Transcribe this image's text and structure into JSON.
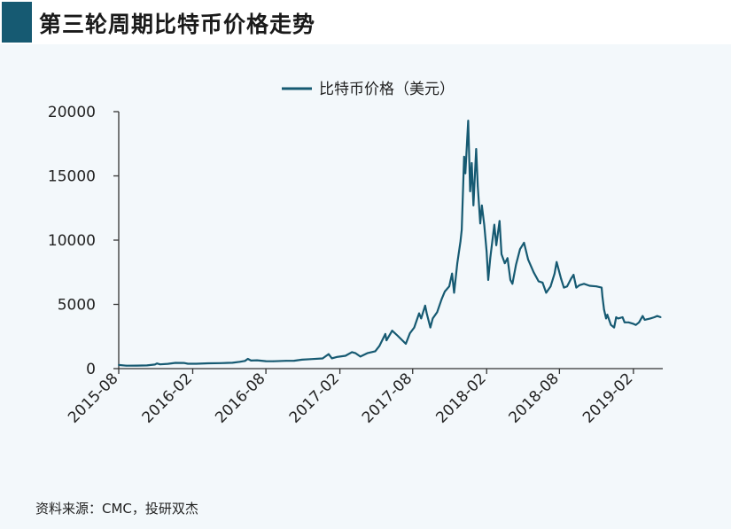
{
  "header": {
    "title": "第三轮周期比特币价格走势"
  },
  "source": "资料来源：CMC，投研双杰",
  "colors": {
    "line": "#165a72",
    "accent": "#165a72",
    "background": "#f3f8fb"
  },
  "chart_data": {
    "type": "line",
    "title": "",
    "xlabel": "",
    "ylabel": "",
    "ylim": [
      0,
      20000
    ],
    "yticks": [
      0,
      5000,
      10000,
      15000,
      20000
    ],
    "xticks": [
      "2015-08",
      "2016-02",
      "2016-08",
      "2017-02",
      "2017-08",
      "2018-02",
      "2018-08",
      "2019-02"
    ],
    "xrange": [
      "2015-08-01",
      "2019-04-15"
    ],
    "legend": {
      "position": "top-center"
    },
    "grid": false,
    "series": [
      {
        "name": "比特币价格（美元）",
        "points": [
          [
            "2015-08-01",
            280
          ],
          [
            "2015-08-20",
            230
          ],
          [
            "2015-09-15",
            235
          ],
          [
            "2015-10-10",
            245
          ],
          [
            "2015-10-30",
            320
          ],
          [
            "2015-11-04",
            400
          ],
          [
            "2015-11-12",
            330
          ],
          [
            "2015-12-01",
            370
          ],
          [
            "2015-12-20",
            450
          ],
          [
            "2016-01-10",
            440
          ],
          [
            "2016-01-20",
            380
          ],
          [
            "2016-02-10",
            380
          ],
          [
            "2016-03-10",
            415
          ],
          [
            "2016-04-10",
            425
          ],
          [
            "2016-05-10",
            455
          ],
          [
            "2016-05-28",
            530
          ],
          [
            "2016-06-10",
            600
          ],
          [
            "2016-06-17",
            760
          ],
          [
            "2016-06-25",
            630
          ],
          [
            "2016-07-10",
            650
          ],
          [
            "2016-08-01",
            580
          ],
          [
            "2016-08-20",
            575
          ],
          [
            "2016-09-20",
            605
          ],
          [
            "2016-10-10",
            615
          ],
          [
            "2016-10-30",
            700
          ],
          [
            "2016-11-20",
            740
          ],
          [
            "2016-12-20",
            790
          ],
          [
            "2017-01-04",
            1130
          ],
          [
            "2017-01-12",
            800
          ],
          [
            "2017-01-25",
            910
          ],
          [
            "2017-02-15",
            1000
          ],
          [
            "2017-03-03",
            1280
          ],
          [
            "2017-03-12",
            1200
          ],
          [
            "2017-03-24",
            940
          ],
          [
            "2017-04-10",
            1200
          ],
          [
            "2017-04-30",
            1350
          ],
          [
            "2017-05-10",
            1750
          ],
          [
            "2017-05-25",
            2700
          ],
          [
            "2017-05-28",
            2200
          ],
          [
            "2017-06-11",
            2950
          ],
          [
            "2017-06-25",
            2550
          ],
          [
            "2017-07-15",
            1930
          ],
          [
            "2017-07-25",
            2750
          ],
          [
            "2017-08-05",
            3200
          ],
          [
            "2017-08-17",
            4300
          ],
          [
            "2017-08-22",
            3900
          ],
          [
            "2017-09-01",
            4900
          ],
          [
            "2017-09-05",
            4300
          ],
          [
            "2017-09-14",
            3200
          ],
          [
            "2017-09-20",
            3900
          ],
          [
            "2017-10-01",
            4400
          ],
          [
            "2017-10-12",
            5400
          ],
          [
            "2017-10-20",
            6000
          ],
          [
            "2017-10-31",
            6400
          ],
          [
            "2017-11-07",
            7400
          ],
          [
            "2017-11-12",
            5900
          ],
          [
            "2017-11-20",
            8200
          ],
          [
            "2017-11-28",
            9900
          ],
          [
            "2017-12-01",
            10800
          ],
          [
            "2017-12-07",
            16500
          ],
          [
            "2017-12-10",
            15200
          ],
          [
            "2017-12-17",
            19300
          ],
          [
            "2017-12-22",
            13800
          ],
          [
            "2017-12-26",
            16000
          ],
          [
            "2017-12-30",
            12700
          ],
          [
            "2018-01-06",
            17100
          ],
          [
            "2018-01-10",
            14200
          ],
          [
            "2018-01-16",
            11300
          ],
          [
            "2018-01-20",
            12700
          ],
          [
            "2018-01-26",
            11200
          ],
          [
            "2018-02-01",
            9100
          ],
          [
            "2018-02-05",
            6900
          ],
          [
            "2018-02-10",
            8600
          ],
          [
            "2018-02-20",
            11200
          ],
          [
            "2018-02-25",
            9600
          ],
          [
            "2018-03-05",
            11500
          ],
          [
            "2018-03-10",
            8900
          ],
          [
            "2018-03-18",
            8200
          ],
          [
            "2018-03-25",
            8600
          ],
          [
            "2018-04-01",
            6900
          ],
          [
            "2018-04-06",
            6600
          ],
          [
            "2018-04-15",
            8100
          ],
          [
            "2018-04-25",
            9300
          ],
          [
            "2018-05-05",
            9800
          ],
          [
            "2018-05-15",
            8500
          ],
          [
            "2018-05-29",
            7500
          ],
          [
            "2018-06-10",
            6800
          ],
          [
            "2018-06-20",
            6700
          ],
          [
            "2018-06-29",
            5900
          ],
          [
            "2018-07-10",
            6400
          ],
          [
            "2018-07-20",
            7400
          ],
          [
            "2018-07-25",
            8300
          ],
          [
            "2018-08-05",
            7000
          ],
          [
            "2018-08-12",
            6300
          ],
          [
            "2018-08-20",
            6400
          ],
          [
            "2018-08-30",
            7000
          ],
          [
            "2018-09-05",
            7300
          ],
          [
            "2018-09-12",
            6300
          ],
          [
            "2018-09-20",
            6500
          ],
          [
            "2018-10-01",
            6600
          ],
          [
            "2018-10-15",
            6450
          ],
          [
            "2018-11-01",
            6400
          ],
          [
            "2018-11-14",
            6300
          ],
          [
            "2018-11-16",
            5600
          ],
          [
            "2018-11-20",
            4600
          ],
          [
            "2018-11-25",
            3900
          ],
          [
            "2018-11-28",
            4200
          ],
          [
            "2018-12-07",
            3400
          ],
          [
            "2018-12-15",
            3200
          ],
          [
            "2018-12-20",
            4000
          ],
          [
            "2018-12-25",
            3900
          ],
          [
            "2019-01-05",
            4000
          ],
          [
            "2019-01-10",
            3600
          ],
          [
            "2019-01-20",
            3600
          ],
          [
            "2019-01-31",
            3500
          ],
          [
            "2019-02-07",
            3400
          ],
          [
            "2019-02-15",
            3600
          ],
          [
            "2019-02-24",
            4100
          ],
          [
            "2019-03-01",
            3800
          ],
          [
            "2019-03-15",
            3900
          ],
          [
            "2019-03-25",
            4000
          ],
          [
            "2019-04-01",
            4100
          ],
          [
            "2019-04-10",
            4000
          ]
        ]
      }
    ]
  }
}
